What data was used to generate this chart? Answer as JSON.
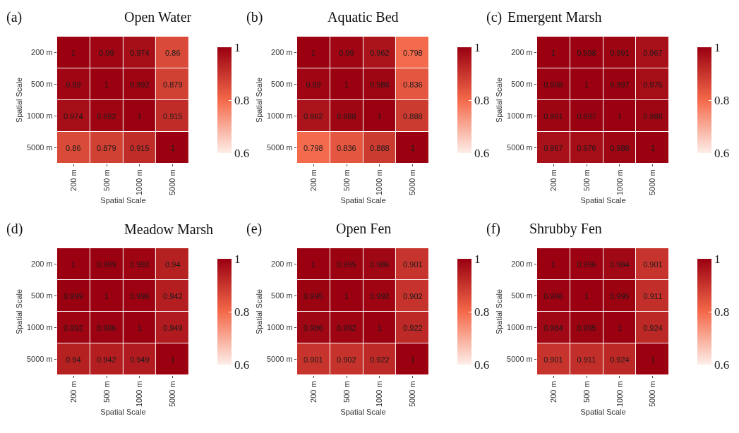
{
  "chart_data": [
    {
      "type": "heatmap",
      "title": "Open Water",
      "annotations": [
        "(a)"
      ],
      "xlabel": "Spatial Scale",
      "ylabel": "Spatial Scale",
      "categories": [
        "200 m",
        "500 m",
        "1000 m",
        "5000 m"
      ],
      "y_categories": [
        "200 m",
        "500 m",
        "1000 m",
        "5000 m"
      ],
      "cells": [
        [
          1,
          0.99,
          0.974,
          0.86
        ],
        [
          0.99,
          1,
          0.992,
          0.879
        ],
        [
          0.974,
          0.992,
          1,
          0.915
        ],
        [
          0.86,
          0.879,
          0.915,
          1
        ]
      ],
      "clim": [
        0.6,
        1
      ],
      "cticks": [
        0.6,
        0.8,
        1
      ],
      "data_labels": true
    },
    {
      "type": "heatmap",
      "title": "Aquatic Bed",
      "annotations": [
        "(b)"
      ],
      "xlabel": "Spatial Scale",
      "ylabel": "Spatial Scale",
      "categories": [
        "200 m",
        "500 m",
        "1000 m",
        "5000 m"
      ],
      "y_categories": [
        "200 m",
        "500 m",
        "1000 m",
        "5000 m"
      ],
      "cells": [
        [
          1,
          0.99,
          0.962,
          0.798
        ],
        [
          0.99,
          1,
          0.988,
          0.836
        ],
        [
          0.962,
          0.988,
          1,
          0.888
        ],
        [
          0.798,
          0.836,
          0.888,
          1
        ]
      ],
      "clim": [
        0.6,
        1
      ],
      "cticks": [
        0.6,
        0.8,
        1
      ],
      "data_labels": true
    },
    {
      "type": "heatmap",
      "title": "Emergent Marsh",
      "annotations": [
        "(c)"
      ],
      "xlabel": "Spatial Scale",
      "ylabel": "Spatial Scale",
      "categories": [
        "200 m",
        "500 m",
        "1000 m",
        "5000 m"
      ],
      "y_categories": [
        "200 m",
        "500 m",
        "1000 m",
        "5000 m"
      ],
      "cells": [
        [
          1,
          0.998,
          0.991,
          0.967
        ],
        [
          0.998,
          1,
          0.997,
          0.976
        ],
        [
          0.991,
          0.997,
          1,
          0.988
        ],
        [
          0.967,
          0.976,
          0.988,
          1
        ]
      ],
      "clim": [
        0.6,
        1
      ],
      "cticks": [
        0.6,
        0.8,
        1
      ],
      "data_labels": true
    },
    {
      "type": "heatmap",
      "title": "Meadow Marsh",
      "annotations": [
        "(d)"
      ],
      "xlabel": "Spatial Scale",
      "ylabel": "Spatial Scale",
      "categories": [
        "200 m",
        "500 m",
        "1000 m",
        "5000 m"
      ],
      "y_categories": [
        "200 m",
        "500 m",
        "1000 m",
        "5000 m"
      ],
      "cells": [
        [
          1,
          0.999,
          0.992,
          0.94
        ],
        [
          0.999,
          1,
          0.996,
          0.942
        ],
        [
          0.992,
          0.996,
          1,
          0.949
        ],
        [
          0.94,
          0.942,
          0.949,
          1
        ]
      ],
      "clim": [
        0.6,
        1
      ],
      "cticks": [
        0.6,
        0.8,
        1
      ],
      "data_labels": true
    },
    {
      "type": "heatmap",
      "title": "Open Fen",
      "annotations": [
        "(e)"
      ],
      "xlabel": "Spatial Scale",
      "ylabel": "Spatial Scale",
      "categories": [
        "200 m",
        "500 m",
        "1000 m",
        "5000 m"
      ],
      "y_categories": [
        "200 m",
        "500 m",
        "1000 m",
        "5000 m"
      ],
      "cells": [
        [
          1,
          0.995,
          0.986,
          0.901
        ],
        [
          0.995,
          1,
          0.992,
          0.902
        ],
        [
          0.986,
          0.992,
          1,
          0.922
        ],
        [
          0.901,
          0.902,
          0.922,
          1
        ]
      ],
      "clim": [
        0.6,
        1
      ],
      "cticks": [
        0.6,
        0.8,
        1
      ],
      "data_labels": true
    },
    {
      "type": "heatmap",
      "title": "Shrubby Fen",
      "annotations": [
        "(f)"
      ],
      "xlabel": "Spatial Scale",
      "ylabel": "Spatial Scale",
      "categories": [
        "200 m",
        "500 m",
        "1000 m",
        "5000 m"
      ],
      "y_categories": [
        "200 m",
        "500 m",
        "1000 m",
        "5000 m"
      ],
      "cells": [
        [
          1,
          0.996,
          0.984,
          0.901
        ],
        [
          0.996,
          1,
          0.995,
          0.911
        ],
        [
          0.984,
          0.995,
          1,
          0.924
        ],
        [
          0.901,
          0.911,
          0.924,
          1
        ]
      ],
      "clim": [
        0.6,
        1
      ],
      "cticks": [
        0.6,
        0.8,
        1
      ],
      "data_labels": true
    }
  ]
}
